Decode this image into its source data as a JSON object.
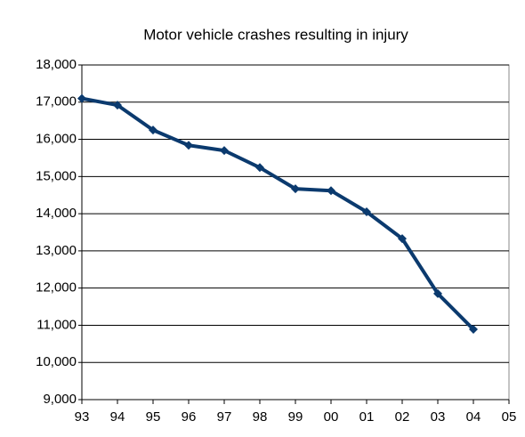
{
  "chart_data": {
    "type": "line",
    "title": "Motor vehicle crashes resulting in injury",
    "categories": [
      "93",
      "94",
      "95",
      "96",
      "97",
      "98",
      "99",
      "00",
      "01",
      "02",
      "03",
      "04",
      "05"
    ],
    "series": [
      {
        "name": "Motor vehicle crashes resulting in injury",
        "color": "#0b3a6e",
        "values": [
          17100,
          16920,
          16250,
          15840,
          15700,
          15240,
          14670,
          14620,
          14050,
          13330,
          11850,
          10890,
          null
        ]
      }
    ],
    "ylim": [
      9000,
      18000
    ],
    "yticks": [
      {
        "value": 9000,
        "label": "9,000"
      },
      {
        "value": 10000,
        "label": "10,000"
      },
      {
        "value": 11000,
        "label": "11,000"
      },
      {
        "value": 12000,
        "label": "12,000"
      },
      {
        "value": 13000,
        "label": "13,000"
      },
      {
        "value": 14000,
        "label": "14,000"
      },
      {
        "value": 15000,
        "label": "15,000"
      },
      {
        "value": 16000,
        "label": "16,000"
      },
      {
        "value": 17000,
        "label": "17,000"
      },
      {
        "value": 18000,
        "label": "18,000"
      }
    ],
    "grid": true
  }
}
